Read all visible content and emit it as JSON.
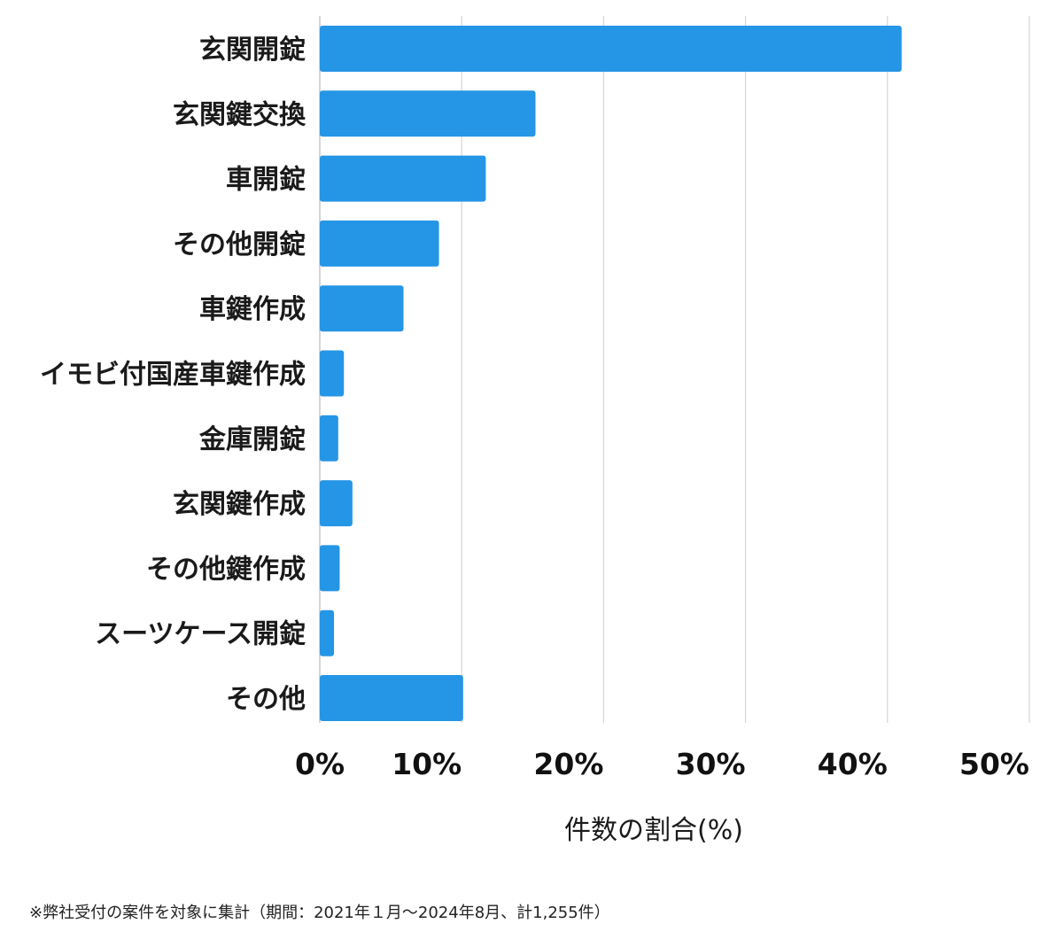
{
  "chart_data": {
    "type": "bar",
    "orientation": "horizontal",
    "categories": [
      "玄関開錠",
      "玄関鍵交換",
      "車開錠",
      "その他開錠",
      "車鍵作成",
      "イモビ付国産車鍵作成",
      "金庫開錠",
      "玄関鍵作成",
      "その他鍵作成",
      "スーツケース開錠",
      "その他"
    ],
    "values": [
      41.0,
      15.2,
      11.7,
      8.4,
      5.9,
      1.7,
      1.3,
      2.3,
      1.4,
      1.0,
      10.1
    ],
    "xlim": [
      0,
      50
    ],
    "xticks": [
      0,
      10,
      20,
      30,
      40,
      50
    ],
    "xtick_labels": [
      "0%",
      "10%",
      "20%",
      "30%",
      "40%",
      "50%"
    ],
    "xlabel": "件数の割合(%)",
    "ylabel": "",
    "bar_color": "#2595e6",
    "grid": true
  },
  "footnote": "※弊社受付の案件を対象に集計（期間：2021年１月～2024年8月、計1,255件）"
}
